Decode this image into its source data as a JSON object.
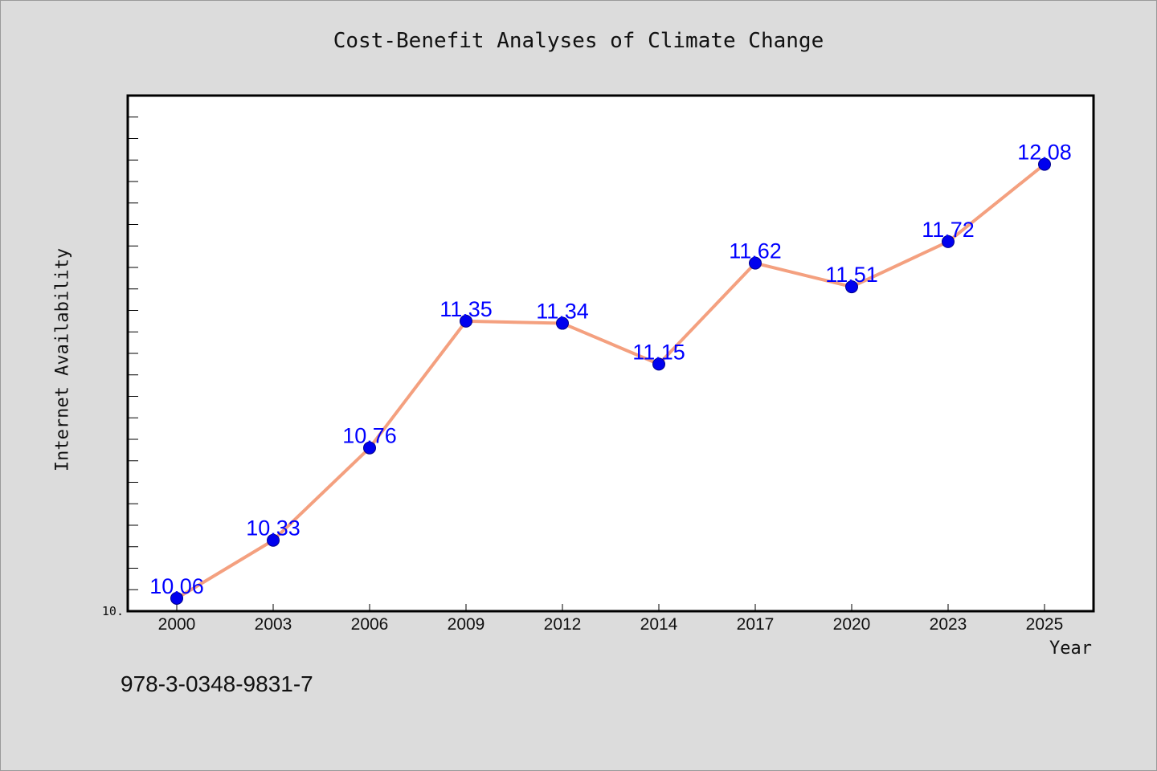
{
  "chart_data": {
    "type": "line",
    "title": "Cost-Benefit Analyses of Climate Change",
    "xlabel": "Year",
    "ylabel": "Internet Availability",
    "categories": [
      "2000",
      "2003",
      "2006",
      "2009",
      "2012",
      "2014",
      "2017",
      "2020",
      "2023",
      "2025"
    ],
    "values": [
      10.06,
      10.33,
      10.76,
      11.35,
      11.34,
      11.15,
      11.62,
      11.51,
      11.72,
      12.08
    ],
    "data_labels": [
      "10.06",
      "10.33",
      "10.76",
      "11.35",
      "11.34",
      "11.15",
      "11.62",
      "11.51",
      "11.72",
      "12.08"
    ],
    "y_tick_label": "10.",
    "ylim": [
      10.0,
      12.4
    ],
    "grid": false,
    "legend": "none",
    "line_color": "#f4a07f",
    "marker_color": "#0000ee",
    "label_color": "#0000ff"
  },
  "footer": {
    "isbn": "978-3-0348-9831-7"
  }
}
